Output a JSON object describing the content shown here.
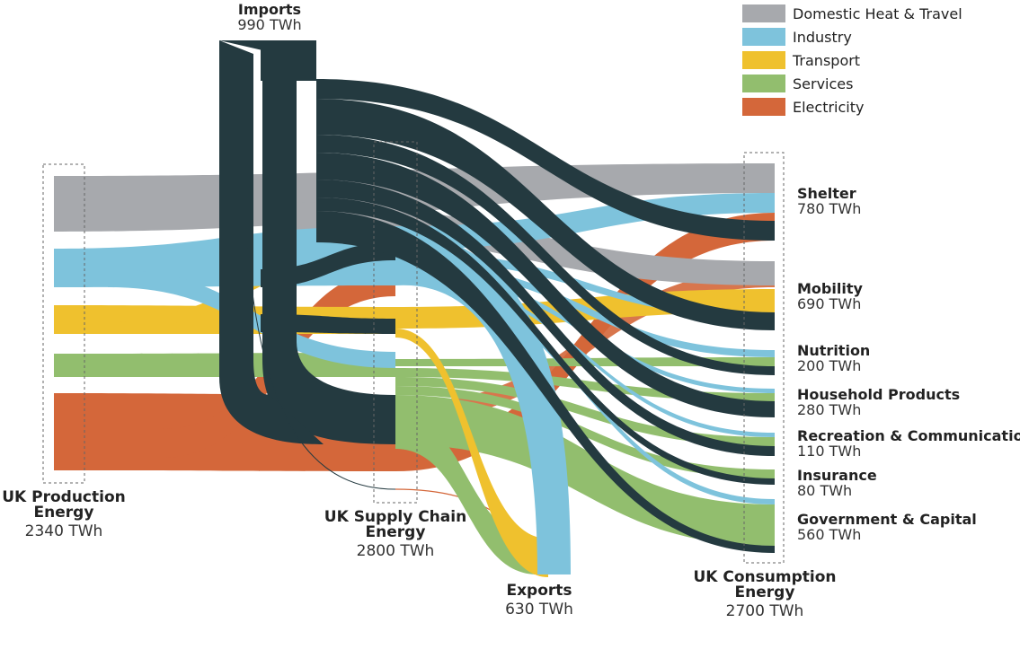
{
  "legend": [
    {
      "name": "Domestic Heat & Travel",
      "color": "#a7a9ad"
    },
    {
      "name": "Industry",
      "color": "#7ec3dc"
    },
    {
      "name": "Transport",
      "color": "#efc12e"
    },
    {
      "name": "Services",
      "color": "#92be6e"
    },
    {
      "name": "Electricity",
      "color": "#d4673a"
    }
  ],
  "colors": {
    "imports": "#243a40",
    "domestic": "#a7a9ad",
    "industry": "#7ec3dc",
    "transport": "#efc12e",
    "services": "#92be6e",
    "electricity": "#d4673a"
  },
  "nodes": {
    "imports": {
      "title": "Imports",
      "value": "990 TWh"
    },
    "production": {
      "title": "UK Production Energy",
      "value": "2340 TWh"
    },
    "supply_chain": {
      "title": "UK Supply Chain Energy",
      "value": "2800 TWh"
    },
    "exports": {
      "title": "Exports",
      "value": "630 TWh"
    },
    "consumption": {
      "title": "UK Consumption Energy",
      "value": "2700 TWh"
    }
  },
  "consumption_categories": [
    {
      "name": "Shelter",
      "value": "780 TWh"
    },
    {
      "name": "Mobility",
      "value": "690 TWh"
    },
    {
      "name": "Nutrition",
      "value": "200 TWh"
    },
    {
      "name": "Household Products",
      "value": "280 TWh"
    },
    {
      "name": "Recreation & Communication",
      "value": "110 TWh"
    },
    {
      "name": "Insurance",
      "value": "80 TWh"
    },
    {
      "name": "Government & Capital",
      "value": "560 TWh"
    }
  ]
}
